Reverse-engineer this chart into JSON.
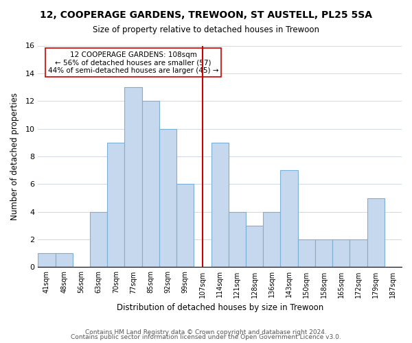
{
  "title": "12, COOPERAGE GARDENS, TREWOON, ST AUSTELL, PL25 5SA",
  "subtitle": "Size of property relative to detached houses in Trewoon",
  "xlabel": "Distribution of detached houses by size in Trewoon",
  "ylabel": "Number of detached properties",
  "bin_labels": [
    "41sqm",
    "48sqm",
    "56sqm",
    "63sqm",
    "70sqm",
    "77sqm",
    "85sqm",
    "92sqm",
    "99sqm",
    "107sqm",
    "114sqm",
    "121sqm",
    "128sqm",
    "136sqm",
    "143sqm",
    "150sqm",
    "158sqm",
    "165sqm",
    "172sqm",
    "179sqm",
    "187sqm"
  ],
  "bar_heights": [
    1,
    1,
    0,
    4,
    9,
    13,
    12,
    10,
    6,
    0,
    9,
    4,
    3,
    4,
    7,
    2,
    2,
    2,
    2,
    5,
    0
  ],
  "bar_color": "#c5d8ed",
  "bar_edge_color": "#7bafd4",
  "vline_x": 9.5,
  "vline_color": "#cc0000",
  "annotation_title": "12 COOPERAGE GARDENS: 108sqm",
  "annotation_line1": "← 56% of detached houses are smaller (57)",
  "annotation_line2": "44% of semi-detached houses are larger (45) →",
  "annotation_box_color": "#ffffff",
  "annotation_box_edge": "#cc0000",
  "ylim": [
    0,
    16
  ],
  "yticks": [
    0,
    2,
    4,
    6,
    8,
    10,
    12,
    14,
    16
  ],
  "footer1": "Contains HM Land Registry data © Crown copyright and database right 2024.",
  "footer2": "Contains public sector information licensed under the Open Government Licence v3.0."
}
